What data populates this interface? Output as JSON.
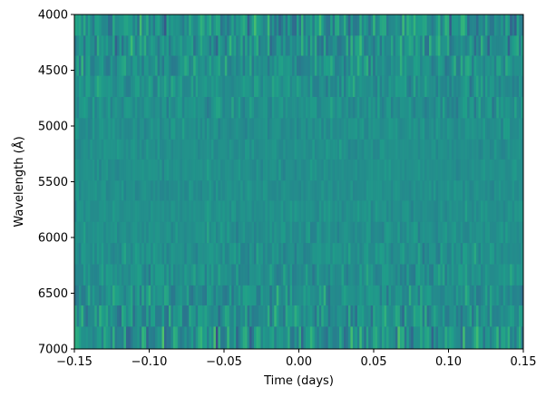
{
  "chart_data": {
    "type": "heatmap",
    "title": "",
    "xlabel": "Time (days)",
    "ylabel": "Wavelength (Å)",
    "xlim": [
      -0.15,
      0.15
    ],
    "ylim": [
      7000,
      4000
    ],
    "x_ticks": [
      -0.15,
      -0.1,
      -0.05,
      0.0,
      0.05,
      0.1,
      0.15
    ],
    "x_tick_labels": [
      "−0.15",
      "−0.10",
      "−0.05",
      "0.00",
      "0.05",
      "0.10",
      "0.15"
    ],
    "y_ticks": [
      4000,
      4500,
      5000,
      5500,
      6000,
      6500,
      7000
    ],
    "y_tick_labels": [
      "4000",
      "4500",
      "5000",
      "5500",
      "6000",
      "6500",
      "7000"
    ],
    "colormap": "viridis",
    "n_time_bins": 200,
    "wavelength_band_edges": [
      4000,
      4190,
      4370,
      4550,
      4740,
      4930,
      5120,
      5300,
      5490,
      5670,
      5860,
      6050,
      6240,
      6430,
      6610,
      6800,
      7000
    ],
    "band_variability": [
      1.0,
      0.85,
      0.7,
      0.55,
      0.45,
      0.35,
      0.28,
      0.25,
      0.25,
      0.28,
      0.35,
      0.45,
      0.55,
      0.7,
      0.85,
      1.0
    ],
    "grid": false,
    "legend": "none"
  }
}
